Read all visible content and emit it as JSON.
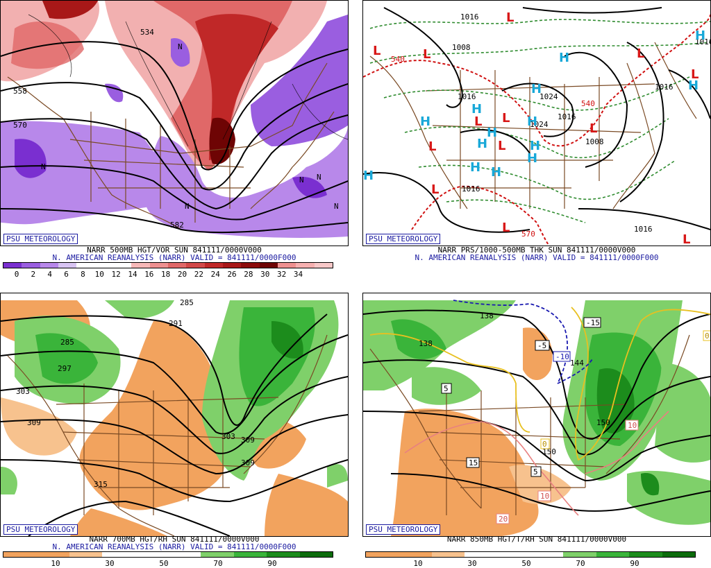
{
  "panels": [
    {
      "id": "p500",
      "badge": "PSU METEOROLOGY",
      "line1": "NARR 500MB HGT/VOR SUN 841111/0000V000",
      "line2": "N. AMERICAN REANALYSIS (NARR) VALID = 841111/0000F000",
      "scale_ticks": [
        "0",
        "2",
        "4",
        "6",
        "8",
        "10",
        "12",
        "14",
        "16",
        "18",
        "20",
        "22",
        "24",
        "26",
        "28",
        "30",
        "32",
        "34"
      ],
      "scale_colors": [
        "#7a2fd0",
        "#9a5ee0",
        "#b888ea",
        "#d8c4f2",
        "#ffffff",
        "#ffffff",
        "#ffffff",
        "#f6b8b8",
        "#ee9090",
        "#e06868",
        "#d24848",
        "#c02828",
        "#a81818",
        "#8c0c0c",
        "#6e0404",
        "#ee9090",
        "#f6b0b0",
        "#f8c8c8"
      ],
      "contour_labels": [
        "534",
        "570",
        "558",
        "582"
      ]
    },
    {
      "id": "pprs",
      "badge": "PSU METEOROLOGY",
      "line1": "NARR PRS/1000-500MB THK SUN 841111/0000V000",
      "line2": "N. AMERICAN REANALYSIS (NARR) VALID = 841111/0000F000",
      "isobar_labels": [
        "1016",
        "1008",
        "1016",
        "1024",
        "1016",
        "1024",
        "1016",
        "1016",
        "1008",
        "1016",
        "1016"
      ],
      "thickness_labels": [
        "540",
        "570",
        "540"
      ]
    },
    {
      "id": "p700",
      "badge": "PSU METEOROLOGY",
      "line1": "NARR 700MB HGT/RH SUN 841111/0000V000",
      "line2": "N. AMERICAN REANALYSIS (NARR) VALID = 841111/0000F000",
      "scale_ticks": [
        "10",
        "30",
        "50",
        "70",
        "90"
      ],
      "scale_colors": [
        "#f2a35e",
        "#f2a35e",
        "#f7c28e",
        "#ffffff",
        "#ffffff",
        "#ffffff",
        "#7fd06a",
        "#3ab43a",
        "#1c8c1c",
        "#0c6c0c"
      ],
      "contour_labels": [
        "285",
        "291",
        "285",
        "297",
        "303",
        "309",
        "309",
        "303",
        "309",
        "315",
        "297",
        "285",
        "291"
      ]
    },
    {
      "id": "p850",
      "badge": "PSU METEOROLOGY",
      "line1": "NARR 850MB HGT/T/RH SUN 841111/0000V000",
      "line2": "",
      "scale_ticks": [
        "10",
        "30",
        "50",
        "70",
        "90"
      ],
      "scale_colors": [
        "#f2a35e",
        "#f2a35e",
        "#f7c28e",
        "#ffffff",
        "#ffffff",
        "#ffffff",
        "#7fd06a",
        "#3ab43a",
        "#1c8c1c",
        "#0c6c0c"
      ],
      "contour_labels": [
        "138",
        "138",
        "144",
        "150",
        "150",
        "144",
        "138"
      ],
      "temp_labels": [
        "-15",
        "-10",
        "-5",
        "5",
        "15",
        "5",
        "10",
        "10",
        "20",
        "0",
        "0"
      ]
    }
  ]
}
